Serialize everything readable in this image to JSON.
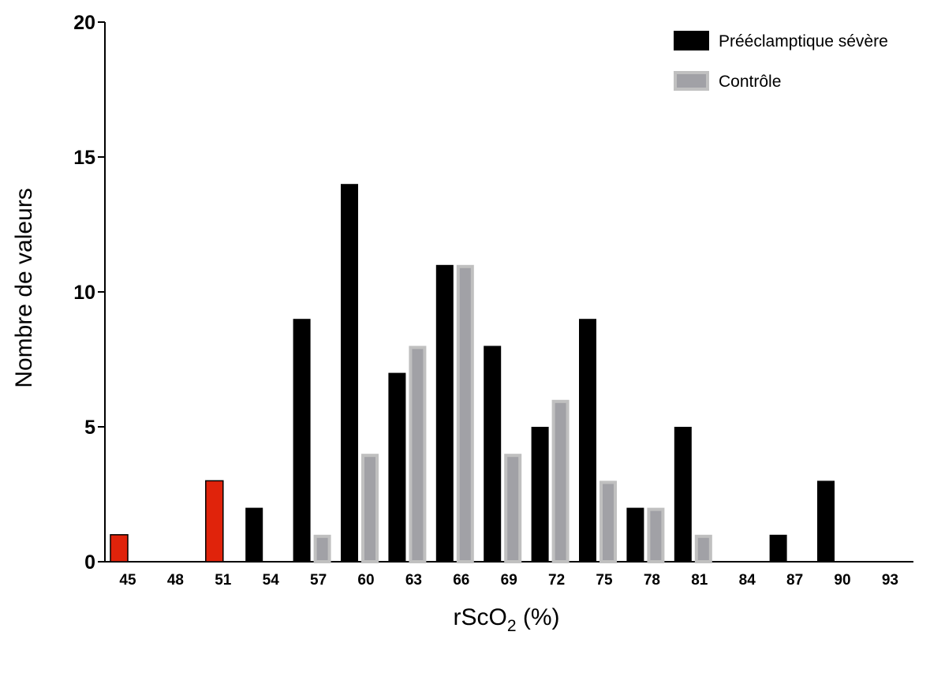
{
  "chart_data": {
    "type": "bar",
    "categories": [
      "45",
      "48",
      "51",
      "54",
      "57",
      "60",
      "63",
      "66",
      "69",
      "72",
      "75",
      "78",
      "81",
      "84",
      "87",
      "90",
      "93"
    ],
    "series": [
      {
        "name": "Prééclamptique sévère",
        "color": "#000000",
        "values": [
          1,
          0,
          3,
          2,
          9,
          14,
          7,
          11,
          8,
          5,
          9,
          2,
          5,
          0,
          1,
          3,
          0
        ],
        "highlight_color": "#e0230b",
        "highlight_categories": [
          "45",
          "51"
        ]
      },
      {
        "name": "Contrôle",
        "color": "#a1a1a6",
        "border_color": "#c0c0c0",
        "values": [
          0,
          0,
          0,
          0,
          1,
          4,
          8,
          11,
          4,
          6,
          3,
          2,
          1,
          0,
          0,
          0,
          0
        ]
      }
    ],
    "xlabel": {
      "main": "rScO",
      "sub": "2",
      "suffix": " (%)"
    },
    "ylabel": "Nombre de valeurs",
    "ylim": [
      0,
      20
    ],
    "yticks": [
      "0",
      "5",
      "10",
      "15",
      "20"
    ],
    "grid": false,
    "legend_position": "top-right"
  }
}
